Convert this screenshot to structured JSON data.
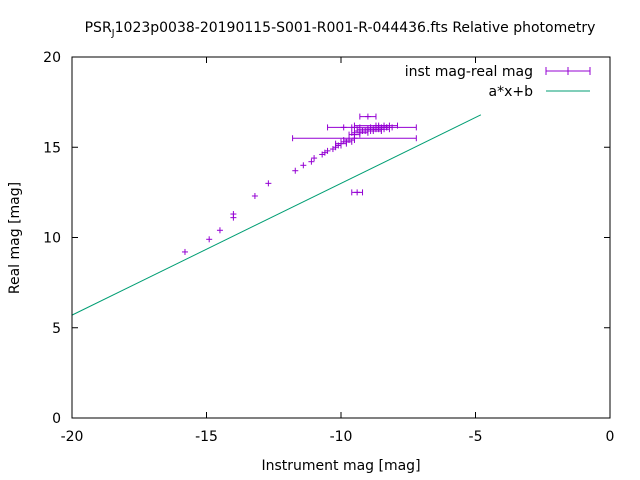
{
  "chart_data": {
    "type": "scatter",
    "title": "PSR_J1023p0038-20190115-S001-R001-R-044436.fts Relative photometry",
    "title_prefix": "PSR",
    "title_subscript": "J",
    "title_suffix": "1023p0038-20190115-S001-R001-R-044436.fts Relative photometry",
    "xlabel": "Instrument mag [mag]",
    "ylabel": "Real mag [mag]",
    "xlim": [
      -20,
      0
    ],
    "ylim": [
      0,
      20
    ],
    "xticks": [
      -20,
      -15,
      -10,
      -5,
      0
    ],
    "yticks": [
      0,
      5,
      10,
      15,
      20
    ],
    "legend_position": "top-right",
    "grid": false,
    "series": [
      {
        "name": "inst mag-real mag",
        "kind": "points-with-x-errorbars",
        "color": "#9400d3",
        "points": [
          {
            "x": -15.8,
            "y": 9.2,
            "xerr": 0.0
          },
          {
            "x": -14.9,
            "y": 9.9,
            "xerr": 0.0
          },
          {
            "x": -14.5,
            "y": 10.4,
            "xerr": 0.0
          },
          {
            "x": -14.0,
            "y": 11.1,
            "xerr": 0.0
          },
          {
            "x": -14.0,
            "y": 11.3,
            "xerr": 0.0
          },
          {
            "x": -13.2,
            "y": 12.3,
            "xerr": 0.0
          },
          {
            "x": -12.7,
            "y": 13.0,
            "xerr": 0.0
          },
          {
            "x": -11.7,
            "y": 13.7,
            "xerr": 0.0
          },
          {
            "x": -11.4,
            "y": 14.0,
            "xerr": 0.0
          },
          {
            "x": -11.1,
            "y": 14.2,
            "xerr": 0.0
          },
          {
            "x": -11.0,
            "y": 14.4,
            "xerr": 0.0
          },
          {
            "x": -10.7,
            "y": 14.6,
            "xerr": 0.0
          },
          {
            "x": -10.6,
            "y": 14.7,
            "xerr": 0.0
          },
          {
            "x": -10.5,
            "y": 14.8,
            "xerr": 0.0
          },
          {
            "x": -10.3,
            "y": 14.9,
            "xerr": 0.0
          },
          {
            "x": -10.2,
            "y": 15.0,
            "xerr": 0.0
          },
          {
            "x": -10.1,
            "y": 15.1,
            "xerr": 0.1
          },
          {
            "x": -10.0,
            "y": 15.2,
            "xerr": 0.2
          },
          {
            "x": -9.8,
            "y": 15.3,
            "xerr": 0.2
          },
          {
            "x": -9.7,
            "y": 15.4,
            "xerr": 0.2
          },
          {
            "x": -9.5,
            "y": 15.5,
            "xerr": 2.3
          },
          {
            "x": -9.5,
            "y": 15.7,
            "xerr": 0.2
          },
          {
            "x": -9.3,
            "y": 15.8,
            "xerr": 0.3
          },
          {
            "x": -9.2,
            "y": 15.9,
            "xerr": 0.3
          },
          {
            "x": -9.0,
            "y": 16.0,
            "xerr": 0.4
          },
          {
            "x": -8.8,
            "y": 15.9,
            "xerr": 0.3
          },
          {
            "x": -8.7,
            "y": 16.0,
            "xerr": 0.3
          },
          {
            "x": -8.6,
            "y": 16.1,
            "xerr": 0.3
          },
          {
            "x": -8.5,
            "y": 16.0,
            "xerr": 0.3
          },
          {
            "x": -8.4,
            "y": 16.2,
            "xerr": 0.2
          },
          {
            "x": -8.3,
            "y": 16.1,
            "xerr": 0.2
          },
          {
            "x": -8.7,
            "y": 16.2,
            "xerr": 0.8
          },
          {
            "x": -9.0,
            "y": 16.7,
            "xerr": 0.3
          },
          {
            "x": -9.9,
            "y": 16.1,
            "xerr": 0.6
          },
          {
            "x": -8.4,
            "y": 16.1,
            "xerr": 1.2
          },
          {
            "x": -9.4,
            "y": 12.5,
            "xerr": 0.2
          }
        ]
      },
      {
        "name": "a*x+b",
        "kind": "line",
        "color": "#009e73",
        "slope": 0.73,
        "intercept": 20.3,
        "x_range": [
          -20,
          -4.8
        ]
      }
    ]
  }
}
